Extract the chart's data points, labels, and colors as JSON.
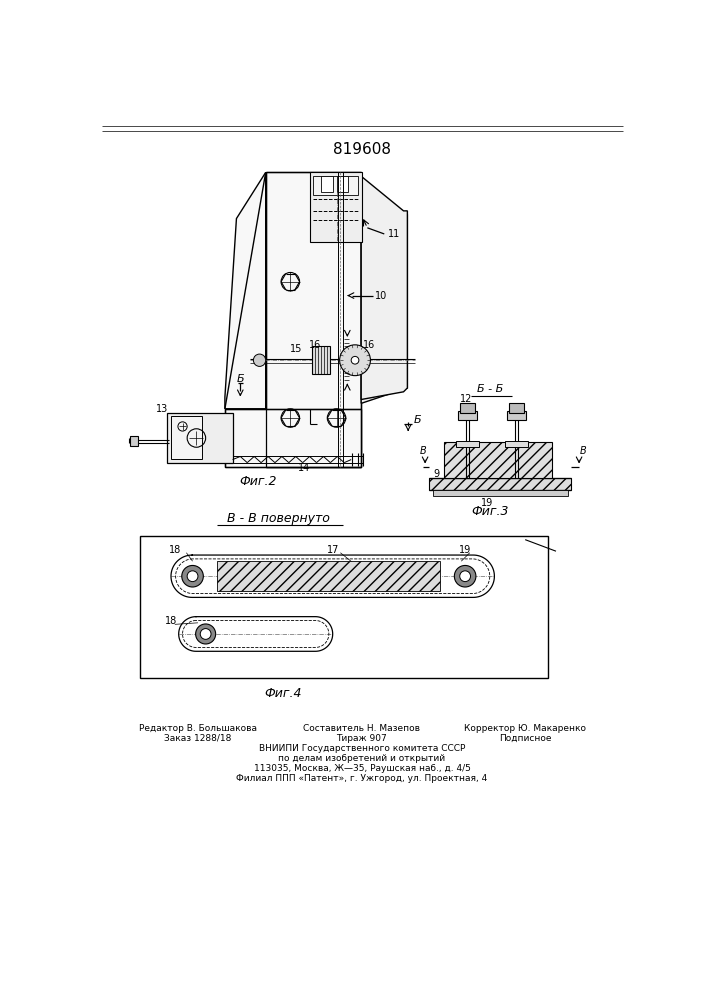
{
  "title": "819608",
  "fig_width": 7.07,
  "fig_height": 10.0,
  "bg_color": "#ffffff",
  "line_color": "#000000",
  "fig2_label": "Фиг.2",
  "fig3_label": "Фиг.3",
  "fig4_label": "Фиг.4",
  "section_bb": "Б - Б",
  "section_vv": "В - В повернуто"
}
